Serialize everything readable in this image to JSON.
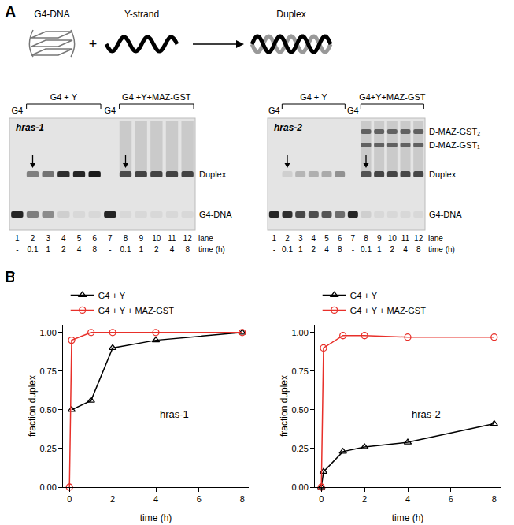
{
  "panel_a": {
    "label": "A",
    "schematic": {
      "items": [
        "G4-DNA",
        "Y-strand",
        "Duplex"
      ],
      "operator": "+"
    },
    "gels": [
      {
        "name": "hras-1",
        "control_label": "G4",
        "groups": [
          "G4 + Y",
          "G4 +Y+MAZ-GST"
        ],
        "lanes": [
          1,
          2,
          3,
          4,
          5,
          6,
          7,
          8,
          9,
          10,
          11,
          12
        ],
        "times": [
          "-",
          "0.1",
          "1",
          "2",
          "4",
          "8",
          "-",
          "0.1",
          "1",
          "2",
          "4",
          "8"
        ],
        "row_labels": [
          "lane",
          "time (h)"
        ],
        "band_labels": [
          "Duplex",
          "G4-DNA"
        ]
      },
      {
        "name": "hras-2",
        "control_label": "G4",
        "groups": [
          "G4 + Y",
          "G4+Y+MAZ-GST"
        ],
        "lanes": [
          1,
          2,
          3,
          4,
          5,
          6,
          7,
          8,
          9,
          10,
          11,
          12
        ],
        "times": [
          "-",
          "0.1",
          "1",
          "2",
          "4",
          "8",
          "-",
          "0.1",
          "1",
          "2",
          "4",
          "8"
        ],
        "row_labels": [
          "lane",
          "time (h)"
        ],
        "band_labels": [
          "D-MAZ-GST₂",
          "D-MAZ-GST₁",
          "Duplex",
          "G4-DNA"
        ]
      }
    ]
  },
  "panel_b": {
    "label": "B"
  },
  "chart_data": [
    {
      "type": "line",
      "title": "hras-1",
      "x_label": "time (h)",
      "y_label": "fraction duplex",
      "xlim": [
        -0.3,
        8.3
      ],
      "xticks": [
        0,
        2,
        4,
        6,
        8
      ],
      "ylim": [
        0,
        1.05
      ],
      "yticks": [
        {
          "value": 0,
          "label": "0.00"
        },
        {
          "value": 0.25,
          "label": "0.25"
        },
        {
          "value": 0.5,
          "label": "0.50"
        },
        {
          "value": 0.75,
          "label": "0.75"
        },
        {
          "value": 1,
          "label": "1.00"
        }
      ],
      "legend": "top left",
      "grid": false,
      "series": [
        {
          "name": "G4 + Y",
          "color": "#000000",
          "marker": "triangle-up-open",
          "x": [
            0.1,
            1,
            2,
            4,
            8
          ],
          "values": [
            0.5,
            0.56,
            0.9,
            0.95,
            1.0
          ]
        },
        {
          "name": "G4 + Y + MAZ-GST",
          "color": "#e8302a",
          "marker": "circle-open",
          "x": [
            0,
            0.1,
            1,
            2,
            4,
            8
          ],
          "values": [
            0,
            0.95,
            1.0,
            1.0,
            1.0,
            1.0
          ]
        }
      ]
    },
    {
      "type": "line",
      "title": "hras-2",
      "x_label": "time (h)",
      "y_label": "fraction duplex",
      "xlim": [
        -0.3,
        8.3
      ],
      "xticks": [
        0,
        2,
        4,
        6,
        8
      ],
      "ylim": [
        0,
        1.05
      ],
      "yticks": [
        {
          "value": 0,
          "label": "0.00"
        },
        {
          "value": 0.25,
          "label": "0.25"
        },
        {
          "value": 0.5,
          "label": "0.50"
        },
        {
          "value": 0.75,
          "label": "0.75"
        },
        {
          "value": 1,
          "label": "1.00"
        }
      ],
      "legend": "top left",
      "grid": false,
      "series": [
        {
          "name": "G4 + Y",
          "color": "#000000",
          "marker": "triangle-up-open",
          "x": [
            0,
            0.1,
            1,
            2,
            4,
            8
          ],
          "values": [
            0,
            0.1,
            0.23,
            0.26,
            0.29,
            0.41
          ]
        },
        {
          "name": "G4 + Y + MAZ-GST",
          "color": "#e8302a",
          "marker": "circle-open",
          "x": [
            0,
            0.1,
            1,
            2,
            4,
            8
          ],
          "values": [
            0,
            0.9,
            0.98,
            0.98,
            0.97,
            0.97
          ]
        }
      ]
    }
  ]
}
